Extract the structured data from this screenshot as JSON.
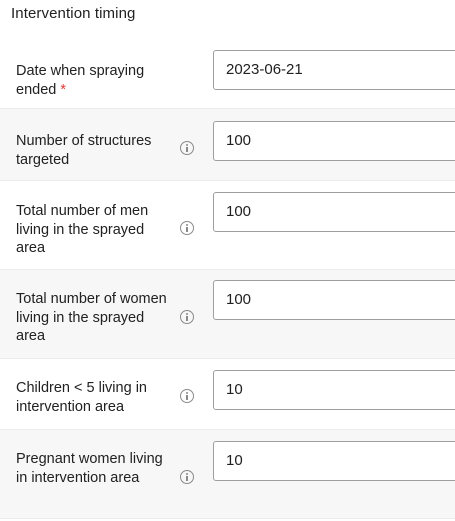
{
  "section": {
    "title": "Intervention timing"
  },
  "fields": [
    {
      "label": "Date when spraying ended",
      "required_mark": "*",
      "value": "2023-06-21"
    },
    {
      "label": "Number of structures targeted",
      "value": "100"
    },
    {
      "label": "Total number of men living in the sprayed area",
      "value": "100"
    },
    {
      "label": "Total number of women living in the sprayed area",
      "value": "100"
    },
    {
      "label": "Children < 5 living in intervention area",
      "value": "10"
    },
    {
      "label": "Pregnant women living in intervention area",
      "value": "10"
    }
  ],
  "icons": {
    "info": "info-circle-icon"
  },
  "colors": {
    "required": "#e53935",
    "row_alt_bg": "#f7f7f7",
    "input_border": "#9e9e9e",
    "icon": "#8a8a8a"
  }
}
